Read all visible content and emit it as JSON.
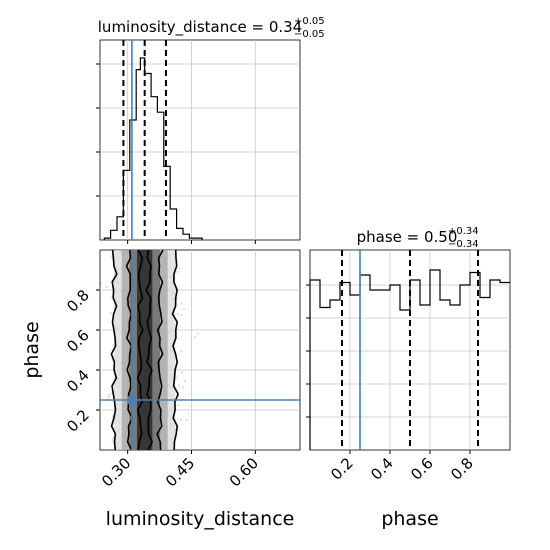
{
  "chart_data": {
    "type": "corner",
    "parameters": [
      "luminosity_distance",
      "phase"
    ],
    "titles": {
      "luminosity_distance": {
        "name": "luminosity_distance",
        "median": "0.34",
        "plus": "+0.05",
        "minus": "−0.05"
      },
      "phase": {
        "name": "phase",
        "median": "0.50",
        "plus": "+0.34",
        "minus": "−0.34"
      }
    },
    "axis_labels": {
      "x_left": "luminosity_distance",
      "x_right": "phase",
      "y_left": "phase"
    },
    "ticks": {
      "luminosity_distance": {
        "values": [
          0.3,
          0.45,
          0.6
        ],
        "labels": [
          "0.30",
          "0.45",
          "0.60"
        ]
      },
      "phase": {
        "values": [
          0.2,
          0.4,
          0.6,
          0.8
        ],
        "labels": [
          "0.2",
          "0.4",
          "0.6",
          "0.8"
        ]
      }
    },
    "ranges": {
      "luminosity_distance": [
        0.235,
        0.705
      ],
      "phase": [
        0.0,
        1.0
      ]
    },
    "truths": {
      "luminosity_distance": 0.31,
      "phase": 0.25
    },
    "quantiles": {
      "luminosity_distance": [
        0.29,
        0.34,
        0.39
      ],
      "phase": [
        0.16,
        0.5,
        0.84
      ]
    },
    "histograms": {
      "luminosity_distance": {
        "bin_edges": [
          0.245,
          0.26,
          0.275,
          0.29,
          0.305,
          0.32,
          0.33,
          0.34,
          0.355,
          0.37,
          0.385,
          0.4,
          0.415,
          0.43,
          0.445,
          0.46,
          0.475
        ],
        "counts": [
          1,
          5,
          12,
          36,
          62,
          88,
          94,
          86,
          74,
          66,
          38,
          16,
          6,
          3,
          1,
          1
        ]
      },
      "phase": {
        "bin_edges": [
          0.0,
          0.05,
          0.1,
          0.15,
          0.2,
          0.25,
          0.3,
          0.35,
          0.4,
          0.45,
          0.5,
          0.55,
          0.6,
          0.65,
          0.7,
          0.75,
          0.8,
          0.85,
          0.9,
          0.95,
          1.0
        ],
        "counts": [
          0.68,
          0.57,
          0.6,
          0.67,
          0.62,
          0.7,
          0.64,
          0.64,
          0.66,
          0.56,
          0.68,
          0.58,
          0.72,
          0.6,
          0.58,
          0.66,
          0.71,
          0.61,
          0.68,
          0.67
        ]
      }
    },
    "scatter_sample_count": 900,
    "grid": true,
    "colors": {
      "truth": "#4682b4",
      "quantile": "#000000",
      "grid": "#c8c8c8",
      "hist": "#000000"
    }
  }
}
